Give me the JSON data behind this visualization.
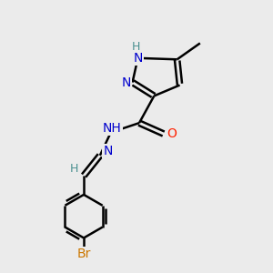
{
  "background_color": "#ebebeb",
  "bond_color": "#000000",
  "bond_width": 1.8,
  "atom_colors": {
    "N": "#0000cd",
    "O": "#ff2000",
    "Br": "#cc7700",
    "C": "#000000",
    "H": "#4a9090"
  },
  "font_size": 10,
  "figsize": [
    3.0,
    3.0
  ],
  "dpi": 100,
  "xlim": [
    0,
    10
  ],
  "ylim": [
    0,
    10
  ]
}
